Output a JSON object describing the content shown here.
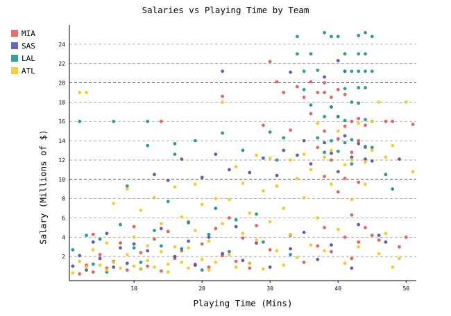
{
  "chart_data": {
    "type": "scatter",
    "title": "Salaries vs Playing Time by Team",
    "xlabel": "Playing Time (Mins)",
    "ylabel": "Salary (Millions of $)",
    "xlim": [
      0.5,
      51.5
    ],
    "ylim": [
      -0.5,
      26
    ],
    "x_ticks": [
      10,
      20,
      30,
      40,
      50
    ],
    "y_ticks": [
      2,
      4,
      6,
      8,
      10,
      12,
      14,
      16,
      18,
      20,
      22,
      24
    ],
    "grid": "horizontal dashed",
    "legend_position": "top-left (outside plot)",
    "colors": {
      "MIA": "#e8534b",
      "SAS": "#4a4eb0",
      "LAL": "#13928a",
      "ATL": "#f7c619"
    },
    "series": [
      {
        "name": "MIA",
        "color": "#e8534b",
        "points": [
          [
            2,
            0.2
          ],
          [
            3,
            1.1
          ],
          [
            4,
            0.4
          ],
          [
            4,
            4.3
          ],
          [
            5,
            2.2
          ],
          [
            6,
            0.8
          ],
          [
            7,
            1.5
          ],
          [
            8,
            3.4
          ],
          [
            9,
            0.6
          ],
          [
            10,
            5.1
          ],
          [
            11,
            2.4
          ],
          [
            12,
            1.0
          ],
          [
            13,
            3.8
          ],
          [
            14,
            16.0
          ],
          [
            14,
            0.5
          ],
          [
            15,
            4.6
          ],
          [
            16,
            1.8
          ],
          [
            17,
            2.6
          ],
          [
            18,
            5.6
          ],
          [
            19,
            1.2
          ],
          [
            20,
            3.3
          ],
          [
            21,
            0.9
          ],
          [
            22,
            4.9
          ],
          [
            23,
            18.6
          ],
          [
            23,
            2.1
          ],
          [
            24,
            6.0
          ],
          [
            25,
            1.5
          ],
          [
            26,
            3.9
          ],
          [
            27,
            0.8
          ],
          [
            28,
            5.2
          ],
          [
            29,
            15.6
          ],
          [
            30,
            22.2
          ],
          [
            30,
            2.7
          ],
          [
            31,
            20.1
          ],
          [
            32,
            19.0
          ],
          [
            33,
            15.1
          ],
          [
            33,
            4.2
          ],
          [
            34,
            19.6
          ],
          [
            35,
            18.5
          ],
          [
            35,
            1.4
          ],
          [
            36,
            20.1
          ],
          [
            36,
            16.8
          ],
          [
            37,
            19.0
          ],
          [
            37,
            13.3
          ],
          [
            37,
            3.1
          ],
          [
            38,
            20.0
          ],
          [
            38,
            19.0
          ],
          [
            38,
            15.0
          ],
          [
            38,
            10.3
          ],
          [
            38,
            5.0
          ],
          [
            39,
            18.5
          ],
          [
            39,
            17.5
          ],
          [
            39,
            12.0
          ],
          [
            39,
            2.5
          ],
          [
            40,
            19.3
          ],
          [
            40,
            16.5
          ],
          [
            40,
            14.2
          ],
          [
            40,
            8.7
          ],
          [
            41,
            18.8
          ],
          [
            41,
            15.5
          ],
          [
            41,
            10.1
          ],
          [
            41,
            4.0
          ],
          [
            42,
            16.0
          ],
          [
            42,
            12.8
          ],
          [
            42,
            6.3
          ],
          [
            42,
            1.8
          ],
          [
            43,
            16.3
          ],
          [
            43,
            14.0
          ],
          [
            43,
            9.7
          ],
          [
            43,
            3.5
          ],
          [
            44,
            15.6
          ],
          [
            44,
            13.3
          ],
          [
            44,
            5.0
          ],
          [
            45,
            16.0
          ],
          [
            45,
            4.2
          ],
          [
            46,
            3.7
          ],
          [
            47,
            16.0
          ],
          [
            48,
            16.0
          ],
          [
            49,
            3.0
          ],
          [
            50,
            4.0
          ],
          [
            51,
            15.7
          ]
        ]
      },
      {
        "name": "SAS",
        "color": "#4a4eb0",
        "points": [
          [
            1,
            1.0
          ],
          [
            2,
            2.1
          ],
          [
            3,
            0.6
          ],
          [
            4,
            3.5
          ],
          [
            5,
            1.8
          ],
          [
            6,
            4.4
          ],
          [
            7,
            0.9
          ],
          [
            8,
            2.9
          ],
          [
            9,
            1.3
          ],
          [
            10,
            3.3
          ],
          [
            11,
            0.7
          ],
          [
            12,
            2.6
          ],
          [
            13,
            10.5
          ],
          [
            14,
            4.9
          ],
          [
            15,
            9.9
          ],
          [
            16,
            2.0
          ],
          [
            17,
            12.1
          ],
          [
            18,
            3.6
          ],
          [
            19,
            1.1
          ],
          [
            20,
            10.2
          ],
          [
            21,
            4.0
          ],
          [
            22,
            12.6
          ],
          [
            23,
            21.2
          ],
          [
            23,
            2.3
          ],
          [
            24,
            11.0
          ],
          [
            25,
            5.1
          ],
          [
            26,
            1.6
          ],
          [
            27,
            10.7
          ],
          [
            28,
            3.4
          ],
          [
            29,
            12.2
          ],
          [
            30,
            0.9
          ],
          [
            31,
            10.4
          ],
          [
            32,
            13.0
          ],
          [
            33,
            21.1
          ],
          [
            33,
            2.8
          ],
          [
            34,
            12.5
          ],
          [
            35,
            14.0
          ],
          [
            35,
            4.5
          ],
          [
            36,
            11.6
          ],
          [
            37,
            1.7
          ],
          [
            38,
            13.8
          ],
          [
            38,
            20.6
          ],
          [
            39,
            12.7
          ],
          [
            39,
            3.2
          ],
          [
            40,
            22.3
          ],
          [
            40,
            10.8
          ],
          [
            41,
            21.2
          ],
          [
            41,
            14.5
          ],
          [
            42,
            12.3
          ],
          [
            42,
            0.8
          ],
          [
            43,
            13.7
          ],
          [
            43,
            5.3
          ],
          [
            44,
            12.1
          ],
          [
            45,
            11.9
          ],
          [
            46,
            4.2
          ],
          [
            47,
            3.5
          ],
          [
            49,
            12.1
          ]
        ]
      },
      {
        "name": "LAL",
        "color": "#13928a",
        "points": [
          [
            1,
            2.7
          ],
          [
            2,
            16.0
          ],
          [
            3,
            4.2
          ],
          [
            4,
            1.2
          ],
          [
            5,
            3.8
          ],
          [
            6,
            0.4
          ],
          [
            7,
            16.0
          ],
          [
            8,
            5.3
          ],
          [
            9,
            9.3
          ],
          [
            10,
            2.9
          ],
          [
            11,
            1.4
          ],
          [
            12,
            16.0
          ],
          [
            12,
            13.5
          ],
          [
            13,
            4.7
          ],
          [
            14,
            3.1
          ],
          [
            15,
            7.7
          ],
          [
            16,
            13.7
          ],
          [
            16,
            12.6
          ],
          [
            17,
            2.8
          ],
          [
            18,
            5.5
          ],
          [
            19,
            14.0
          ],
          [
            20,
            0.6
          ],
          [
            21,
            4.3
          ],
          [
            22,
            7.0
          ],
          [
            23,
            14.8
          ],
          [
            24,
            2.5
          ],
          [
            25,
            5.8
          ],
          [
            26,
            13.0
          ],
          [
            27,
            1.3
          ],
          [
            28,
            6.4
          ],
          [
            29,
            3.5
          ],
          [
            30,
            14.9
          ],
          [
            31,
            12.0
          ],
          [
            32,
            14.3
          ],
          [
            33,
            2.2
          ],
          [
            34,
            24.8
          ],
          [
            34,
            23.0
          ],
          [
            35,
            21.2
          ],
          [
            35,
            19.3
          ],
          [
            36,
            23.0
          ],
          [
            36,
            17.7
          ],
          [
            37,
            21.3
          ],
          [
            37,
            14.3
          ],
          [
            38,
            25.2
          ],
          [
            38,
            16.5
          ],
          [
            38,
            12.8
          ],
          [
            39,
            24.8
          ],
          [
            39,
            17.5
          ],
          [
            39,
            14.0
          ],
          [
            40,
            24.8
          ],
          [
            40,
            16.5
          ],
          [
            40,
            12.9
          ],
          [
            41,
            23.0
          ],
          [
            41,
            21.2
          ],
          [
            41,
            19.4
          ],
          [
            41,
            16.1
          ],
          [
            41,
            13.8
          ],
          [
            42,
            21.2
          ],
          [
            42,
            18.0
          ],
          [
            42,
            14.1
          ],
          [
            42,
            11.6
          ],
          [
            43,
            24.9
          ],
          [
            43,
            23.0
          ],
          [
            43,
            21.2
          ],
          [
            43,
            19.5
          ],
          [
            43,
            17.9
          ],
          [
            44,
            25.2
          ],
          [
            44,
            23.0
          ],
          [
            44,
            21.2
          ],
          [
            44,
            19.5
          ],
          [
            44,
            16.2
          ],
          [
            44,
            13.4
          ],
          [
            45,
            24.8
          ],
          [
            45,
            21.2
          ],
          [
            45,
            13.3
          ],
          [
            47,
            10.5
          ],
          [
            48,
            9.0
          ]
        ]
      },
      {
        "name": "ATL",
        "color": "#f7c619",
        "points": [
          [
            2,
            19.0
          ],
          [
            3,
            19.0
          ],
          [
            1,
            0.3
          ],
          [
            2,
            1.5
          ],
          [
            3,
            0.9
          ],
          [
            4,
            2.7
          ],
          [
            5,
            1.1
          ],
          [
            6,
            0.6
          ],
          [
            6,
            3.4
          ],
          [
            7,
            7.5
          ],
          [
            7,
            1.4
          ],
          [
            8,
            0.8
          ],
          [
            9,
            2.2
          ],
          [
            9,
            9.0
          ],
          [
            10,
            1.0
          ],
          [
            10,
            4.0
          ],
          [
            11,
            0.7
          ],
          [
            11,
            6.8
          ],
          [
            12,
            1.6
          ],
          [
            12,
            3.1
          ],
          [
            13,
            0.9
          ],
          [
            13,
            8.1
          ],
          [
            14,
            2.5
          ],
          [
            14,
            5.4
          ],
          [
            15,
            1.2
          ],
          [
            15,
            0.4
          ],
          [
            16,
            9.2
          ],
          [
            16,
            3.0
          ],
          [
            17,
            1.4
          ],
          [
            17,
            6.1
          ],
          [
            18,
            0.8
          ],
          [
            18,
            2.9
          ],
          [
            19,
            4.7
          ],
          [
            19,
            9.5
          ],
          [
            20,
            1.7
          ],
          [
            20,
            7.4
          ],
          [
            21,
            0.6
          ],
          [
            21,
            3.6
          ],
          [
            22,
            8.0
          ],
          [
            22,
            1.4
          ],
          [
            23,
            18.0
          ],
          [
            23,
            5.4
          ],
          [
            24,
            2.2
          ],
          [
            24,
            7.9
          ],
          [
            25,
            0.9
          ],
          [
            25,
            11.3
          ],
          [
            26,
            4.4
          ],
          [
            26,
            9.6
          ],
          [
            27,
            1.3
          ],
          [
            27,
            6.5
          ],
          [
            28,
            12.5
          ],
          [
            28,
            3.7
          ],
          [
            29,
            8.8
          ],
          [
            29,
            0.7
          ],
          [
            30,
            5.6
          ],
          [
            30,
            12.2
          ],
          [
            31,
            2.6
          ],
          [
            31,
            9.3
          ],
          [
            32,
            1.1
          ],
          [
            32,
            7.0
          ],
          [
            33,
            12.0
          ],
          [
            33,
            4.3
          ],
          [
            34,
            10.1
          ],
          [
            34,
            1.9
          ],
          [
            35,
            12.6
          ],
          [
            35,
            8.1
          ],
          [
            36,
            3.2
          ],
          [
            36,
            11.0
          ],
          [
            37,
            15.8
          ],
          [
            37,
            6.0
          ],
          [
            38,
            12.3
          ],
          [
            38,
            2.6
          ],
          [
            39,
            13.0
          ],
          [
            39,
            9.5
          ],
          [
            40,
            15.0
          ],
          [
            40,
            4.8
          ],
          [
            41,
            11.5
          ],
          [
            41,
            1.3
          ],
          [
            42,
            12.0
          ],
          [
            42,
            7.9
          ],
          [
            43,
            15.8
          ],
          [
            43,
            3.0
          ],
          [
            44,
            11.8
          ],
          [
            44,
            9.5
          ],
          [
            45,
            16.0
          ],
          [
            45,
            13.0
          ],
          [
            46,
            18.0
          ],
          [
            46,
            2.3
          ],
          [
            47,
            12.3
          ],
          [
            47,
            4.4
          ],
          [
            48,
            13.5
          ],
          [
            48,
            0.9
          ],
          [
            49,
            1.8
          ],
          [
            50,
            18.0
          ],
          [
            51,
            10.8
          ]
        ]
      }
    ]
  }
}
